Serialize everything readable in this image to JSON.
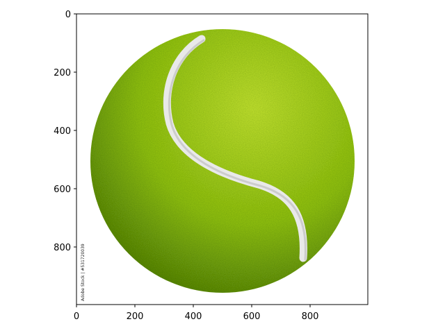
{
  "image": {
    "subject": "grass-covered tennis ball",
    "colors": {
      "grass_light": "#c6e531",
      "grass_mid": "#94c40f",
      "grass_dark": "#4f7d05",
      "seam": "#eeeeee",
      "background": "#ffffff"
    },
    "watermark": "Adobe Stock | #531720039"
  },
  "axes": {
    "x_ticks": [
      "0",
      "200",
      "400",
      "600",
      "800"
    ],
    "y_ticks": [
      "0",
      "200",
      "400",
      "600",
      "800"
    ]
  }
}
